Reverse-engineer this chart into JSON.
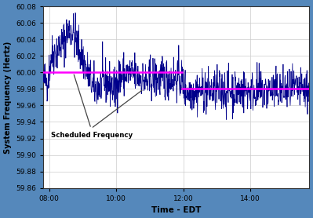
{
  "title": "",
  "xlabel": "Time - EDT",
  "ylabel": "System Frequency (Hertz)",
  "ylim": [
    59.86,
    60.08
  ],
  "yticks": [
    59.86,
    59.88,
    59.9,
    59.92,
    59.94,
    59.96,
    59.98,
    60.0,
    60.02,
    60.04,
    60.06,
    60.08
  ],
  "xlim_hours": [
    7.83,
    15.75
  ],
  "xtick_hours": [
    8.0,
    10.0,
    12.0,
    14.0
  ],
  "xtick_labels": [
    "08:00",
    "10:00",
    "12:00",
    "14:00"
  ],
  "line_color": "#00008B",
  "sched_color": "#FF00FF",
  "sched_segments": [
    {
      "x_start": 7.83,
      "x_end": 11.95,
      "y": 60.0
    },
    {
      "x_start": 11.95,
      "x_end": 15.75,
      "y": 59.98
    }
  ],
  "annotation_text": "Scheduled Frequency",
  "background_color": "#ffffff",
  "border_color": "#5588BB",
  "grid_color": "#cccccc",
  "random_seed": 42
}
